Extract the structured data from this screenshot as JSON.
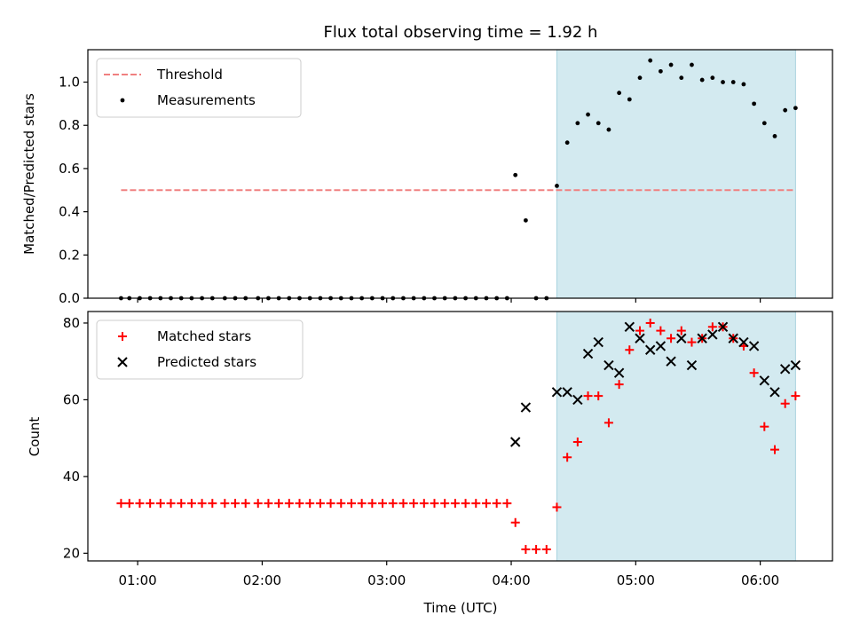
{
  "chart_data": [
    {
      "type": "scatter",
      "title": "Flux total observing time = 1.92 h",
      "ylabel": "Matched/Predicted stars",
      "xlabel": "",
      "ylim": [
        0,
        1.15
      ],
      "xlim_hours": [
        0.6,
        6.58
      ],
      "yticks": [
        0.0,
        0.2,
        0.4,
        0.6,
        0.8,
        1.0
      ],
      "ytick_labels": [
        "0.0",
        "0.2",
        "0.4",
        "0.6",
        "0.8",
        "1.0"
      ],
      "xtick_labels": [],
      "shaded_region": {
        "from": "04:22",
        "to": "06:17",
        "color": "#d3eaf0"
      },
      "legend": {
        "position": "top-left",
        "entries": [
          {
            "name": "Threshold",
            "marker": "dashed-line",
            "color": "#f08080"
          },
          {
            "name": "Measurements",
            "marker": "dot",
            "color": "#000000"
          }
        ]
      },
      "series": [
        {
          "name": "Threshold",
          "kind": "line",
          "color": "#f08080",
          "dashed": true,
          "x": [
            "00:52",
            "06:17"
          ],
          "y": [
            0.5,
            0.5
          ]
        },
        {
          "name": "Measurements",
          "kind": "dot",
          "color": "#000000",
          "x": [
            "00:52",
            "00:56",
            "01:01",
            "01:06",
            "01:11",
            "01:16",
            "01:21",
            "01:26",
            "01:31",
            "01:36",
            "01:42",
            "01:47",
            "01:52",
            "01:58",
            "02:03",
            "02:08",
            "02:13",
            "02:18",
            "02:23",
            "02:28",
            "02:33",
            "02:38",
            "02:43",
            "02:48",
            "02:53",
            "02:58",
            "03:03",
            "03:08",
            "03:13",
            "03:18",
            "03:23",
            "03:28",
            "03:33",
            "03:38",
            "03:43",
            "03:48",
            "03:53",
            "03:58",
            "04:02",
            "04:07",
            "04:12",
            "04:17",
            "04:22",
            "04:27",
            "04:32",
            "04:37",
            "04:42",
            "04:47",
            "04:52",
            "04:57",
            "05:02",
            "05:07",
            "05:12",
            "05:17",
            "05:22",
            "05:27",
            "05:32",
            "05:37",
            "05:42",
            "05:47",
            "05:52",
            "05:57",
            "06:02",
            "06:07",
            "06:12",
            "06:17"
          ],
          "y": [
            0,
            0,
            0,
            0,
            0,
            0,
            0,
            0,
            0,
            0,
            0,
            0,
            0,
            0,
            0,
            0,
            0,
            0,
            0,
            0,
            0,
            0,
            0,
            0,
            0,
            0,
            0,
            0,
            0,
            0,
            0,
            0,
            0,
            0,
            0,
            0,
            0,
            0,
            0.57,
            0.36,
            0,
            0,
            0.52,
            0.72,
            0.81,
            0.85,
            0.81,
            0.78,
            0.95,
            0.92,
            1.02,
            1.1,
            1.05,
            1.08,
            1.02,
            1.08,
            1.01,
            1.02,
            1.0,
            1.0,
            0.99,
            0.9,
            0.81,
            0.75,
            0.87,
            0.88
          ]
        }
      ]
    },
    {
      "type": "scatter",
      "title": "",
      "ylabel": "Count",
      "xlabel": "Time (UTC)",
      "ylim": [
        18,
        83
      ],
      "xlim_hours": [
        0.6,
        6.58
      ],
      "yticks": [
        20,
        40,
        60,
        80
      ],
      "ytick_labels": [
        "20",
        "40",
        "60",
        "80"
      ],
      "xticks_hours": [
        1,
        2,
        3,
        4,
        5,
        6
      ],
      "xtick_labels": [
        "01:00",
        "02:00",
        "03:00",
        "04:00",
        "05:00",
        "06:00"
      ],
      "shaded_region": {
        "from": "04:22",
        "to": "06:17",
        "color": "#d3eaf0"
      },
      "legend": {
        "position": "top-left",
        "entries": [
          {
            "name": "Matched stars",
            "marker": "plus",
            "color": "#ff0000"
          },
          {
            "name": "Predicted stars",
            "marker": "x",
            "color": "#000000"
          }
        ]
      },
      "series": [
        {
          "name": "Matched stars",
          "kind": "plus",
          "color": "#ff0000",
          "x": [
            "00:52",
            "00:56",
            "01:01",
            "01:06",
            "01:11",
            "01:16",
            "01:21",
            "01:26",
            "01:31",
            "01:36",
            "01:42",
            "01:47",
            "01:52",
            "01:58",
            "02:03",
            "02:08",
            "02:13",
            "02:18",
            "02:23",
            "02:28",
            "02:33",
            "02:38",
            "02:43",
            "02:48",
            "02:53",
            "02:58",
            "03:03",
            "03:08",
            "03:13",
            "03:18",
            "03:23",
            "03:28",
            "03:33",
            "03:38",
            "03:43",
            "03:48",
            "03:53",
            "03:58",
            "04:02",
            "04:07",
            "04:12",
            "04:17",
            "04:22",
            "04:27",
            "04:32",
            "04:37",
            "04:42",
            "04:47",
            "04:52",
            "04:57",
            "05:02",
            "05:07",
            "05:12",
            "05:17",
            "05:22",
            "05:27",
            "05:32",
            "05:37",
            "05:42",
            "05:47",
            "05:52",
            "05:57",
            "06:02",
            "06:07",
            "06:12",
            "06:17"
          ],
          "y": [
            33,
            33,
            33,
            33,
            33,
            33,
            33,
            33,
            33,
            33,
            33,
            33,
            33,
            33,
            33,
            33,
            33,
            33,
            33,
            33,
            33,
            33,
            33,
            33,
            33,
            33,
            33,
            33,
            33,
            33,
            33,
            33,
            33,
            33,
            33,
            33,
            33,
            33,
            28,
            21,
            21,
            21,
            32,
            45,
            49,
            61,
            61,
            54,
            64,
            73,
            78,
            80,
            78,
            76,
            78,
            75,
            76,
            79,
            79,
            76,
            74,
            67,
            53,
            47,
            59,
            61
          ]
        },
        {
          "name": "Predicted stars",
          "kind": "x",
          "color": "#000000",
          "x": [
            "04:02",
            "04:07",
            "04:22",
            "04:27",
            "04:32",
            "04:37",
            "04:42",
            "04:47",
            "04:52",
            "04:57",
            "05:02",
            "05:07",
            "05:12",
            "05:17",
            "05:22",
            "05:27",
            "05:32",
            "05:37",
            "05:42",
            "05:47",
            "05:52",
            "05:57",
            "06:02",
            "06:07",
            "06:12",
            "06:17"
          ],
          "y": [
            49,
            58,
            62,
            62,
            60,
            72,
            75,
            69,
            67,
            79,
            76,
            73,
            74,
            70,
            76,
            69,
            76,
            77,
            79,
            76,
            75,
            74,
            65,
            62,
            68,
            69
          ]
        }
      ]
    }
  ]
}
